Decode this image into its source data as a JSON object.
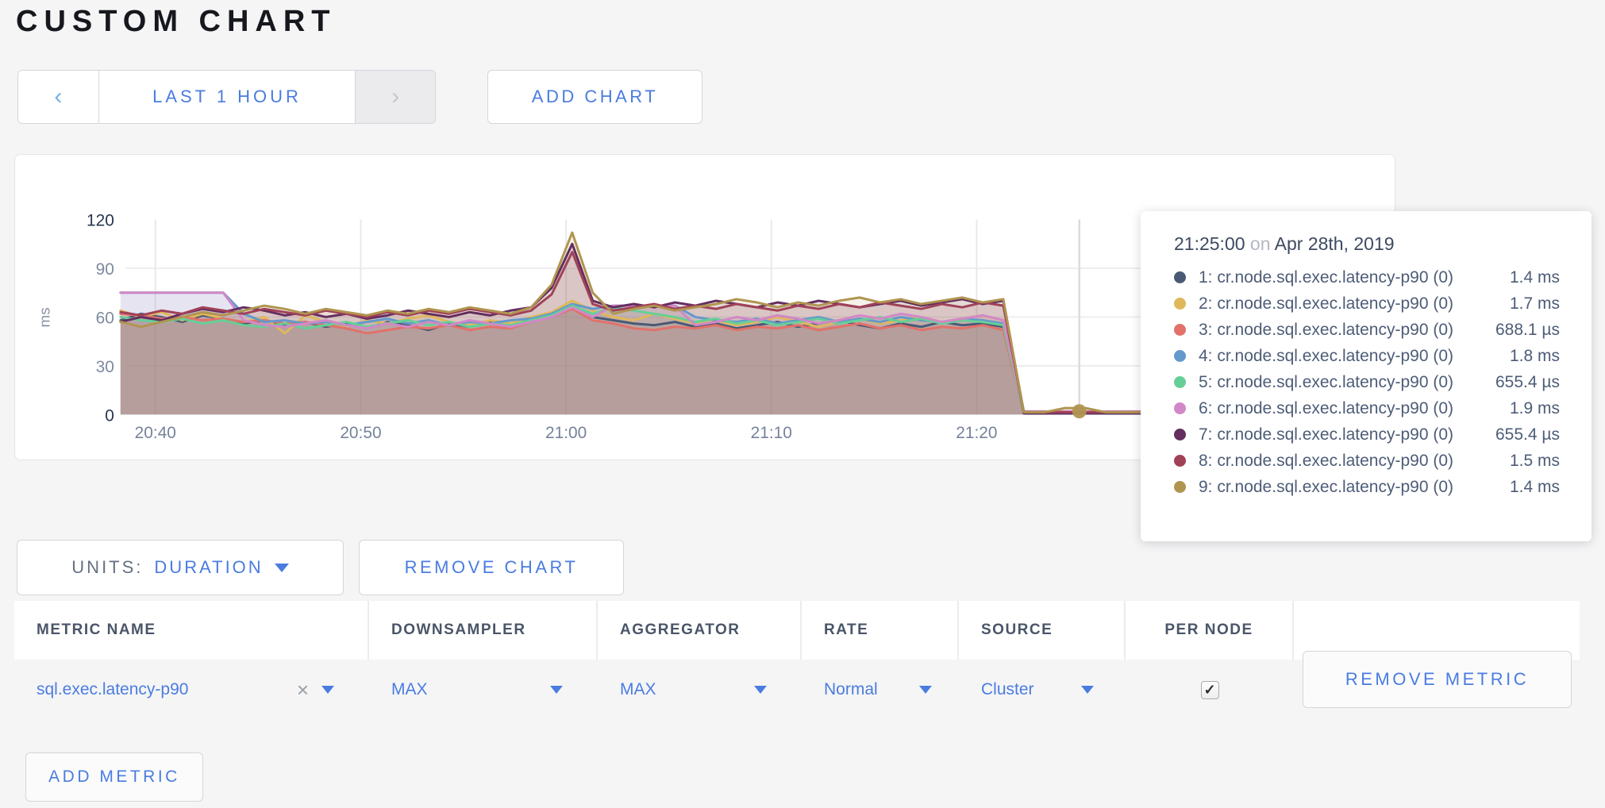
{
  "page": {
    "title": "CUSTOM CHART",
    "background": "#f5f5f6",
    "accent_blue": "#4a7ce0"
  },
  "time_nav": {
    "prev_icon": "‹",
    "range_label": "LAST 1 HOUR",
    "next_icon": "›"
  },
  "add_chart_label": "ADD CHART",
  "chart_data": {
    "type": "area",
    "title": "",
    "ylabel": "ms",
    "ylim": [
      0,
      120
    ],
    "yticks": [
      0,
      30,
      60,
      90,
      120
    ],
    "grid": true,
    "x_start": "20:38",
    "x_step_min": 1,
    "xticks": [
      {
        "label": "20:40",
        "t": 1.7
      },
      {
        "label": "20:50",
        "t": 11.7
      },
      {
        "label": "21:00",
        "t": 21.7
      },
      {
        "label": "21:10",
        "t": 31.7
      },
      {
        "label": "21:20",
        "t": 41.7
      }
    ],
    "hover": {
      "t": 46.7,
      "time_label": "21:25:00",
      "marker_value": 2
    },
    "series": [
      {
        "name": "1: cr.node.sql.exec.latency-p90 (0)",
        "color": "#4a5a75",
        "values": [
          58,
          62,
          60,
          57,
          61,
          59,
          56,
          58,
          55,
          57,
          54,
          56,
          53,
          57,
          55,
          52,
          56,
          54,
          57,
          55,
          58,
          60,
          66,
          60,
          58,
          56,
          55,
          57,
          54,
          56,
          53,
          55,
          57,
          54,
          56,
          58,
          55,
          53,
          56,
          54,
          57,
          55,
          56,
          54,
          1.4,
          1.4,
          1.4,
          1.4,
          1.4,
          1.4,
          1.4
        ]
      },
      {
        "name": "2: cr.node.sql.exec.latency-p90 (0)",
        "color": "#dfb85c",
        "values": [
          64,
          60,
          63,
          58,
          62,
          59,
          57,
          60,
          50,
          61,
          57,
          54,
          58,
          56,
          59,
          61,
          57,
          55,
          58,
          56,
          60,
          63,
          70,
          64,
          60,
          58,
          62,
          59,
          56,
          58,
          55,
          57,
          60,
          57,
          54,
          57,
          59,
          56,
          58,
          60,
          57,
          59,
          61,
          58,
          1.7,
          1.7,
          1.7,
          1.7,
          1.7,
          1.7,
          1.7
        ]
      },
      {
        "name": "3: cr.node.sql.exec.latency-p90 (0)",
        "color": "#e2716a",
        "values": [
          62,
          61,
          59,
          60,
          58,
          59,
          57,
          58,
          56,
          57,
          55,
          53,
          50,
          52,
          54,
          53,
          55,
          52,
          54,
          53,
          57,
          60,
          65,
          58,
          56,
          53,
          52,
          54,
          53,
          55,
          52,
          54,
          53,
          55,
          52,
          54,
          56,
          53,
          55,
          52,
          54,
          53,
          55,
          52,
          0.7,
          0.7,
          0.7,
          0.7,
          0.7,
          0.7,
          0.7
        ]
      },
      {
        "name": "4: cr.node.sql.exec.latency-p90 (0)",
        "color": "#6499cc",
        "values": [
          75,
          75,
          75,
          75,
          75,
          75,
          62,
          57,
          58,
          56,
          57,
          55,
          57,
          59,
          56,
          58,
          55,
          57,
          56,
          58,
          59,
          62,
          68,
          65,
          67,
          67,
          67,
          67,
          60,
          58,
          57,
          59,
          56,
          58,
          60,
          57,
          59,
          57,
          60,
          58,
          57,
          59,
          58,
          56,
          1.8,
          1.8,
          1.8,
          1.8,
          1.8,
          1.8,
          1.8
        ]
      },
      {
        "name": "5: cr.node.sql.exec.latency-p90 (0)",
        "color": "#66cf97",
        "values": [
          60,
          58,
          57,
          59,
          56,
          58,
          55,
          54,
          56,
          53,
          55,
          57,
          54,
          56,
          58,
          55,
          57,
          54,
          56,
          55,
          58,
          61,
          67,
          62,
          66,
          64,
          62,
          60,
          57,
          59,
          56,
          58,
          55,
          57,
          59,
          56,
          58,
          60,
          57,
          59,
          56,
          58,
          57,
          55,
          0.7,
          0.7,
          0.7,
          0.7,
          0.7,
          0.7,
          0.7
        ]
      },
      {
        "name": "6: cr.node.sql.exec.latency-p90 (0)",
        "color": "#d288c6",
        "values": [
          75,
          75,
          75,
          75,
          75,
          75,
          58,
          55,
          54,
          56,
          58,
          55,
          53,
          56,
          54,
          57,
          55,
          58,
          56,
          54,
          57,
          60,
          66,
          60,
          67,
          67,
          67,
          67,
          55,
          57,
          60,
          58,
          61,
          59,
          56,
          58,
          61,
          59,
          62,
          60,
          57,
          59,
          61,
          58,
          1.9,
          1.9,
          1.9,
          1.9,
          1.9,
          1.9,
          1.9
        ]
      },
      {
        "name": "7: cr.node.sql.exec.latency-p90 (0)",
        "color": "#642e5e",
        "values": [
          57,
          60,
          58,
          62,
          65,
          63,
          66,
          64,
          61,
          63,
          60,
          62,
          59,
          61,
          64,
          62,
          60,
          63,
          61,
          64,
          66,
          78,
          105,
          70,
          66,
          68,
          66,
          69,
          67,
          70,
          68,
          66,
          69,
          67,
          70,
          68,
          66,
          68,
          70,
          67,
          69,
          71,
          68,
          70,
          0.7,
          0.7,
          0.7,
          0.7,
          0.7,
          0.7,
          0.7
        ]
      },
      {
        "name": "8: cr.node.sql.exec.latency-p90 (0)",
        "color": "#a04158",
        "values": [
          63,
          61,
          64,
          62,
          66,
          64,
          62,
          65,
          63,
          61,
          64,
          62,
          60,
          63,
          61,
          64,
          62,
          65,
          63,
          61,
          64,
          74,
          100,
          68,
          64,
          66,
          68,
          65,
          67,
          65,
          68,
          66,
          64,
          67,
          65,
          68,
          66,
          69,
          67,
          65,
          68,
          66,
          69,
          67,
          1.5,
          1.5,
          1.5,
          1.5,
          1.5,
          1.5,
          1.5
        ]
      },
      {
        "name": "9: cr.node.sql.exec.latency-p90 (0)",
        "color": "#b09550",
        "values": [
          57,
          54,
          57,
          60,
          63,
          61,
          64,
          67,
          65,
          62,
          65,
          63,
          61,
          64,
          62,
          65,
          63,
          66,
          64,
          62,
          66,
          80,
          112,
          75,
          62,
          65,
          67,
          64,
          66,
          68,
          71,
          69,
          66,
          69,
          67,
          70,
          72,
          69,
          71,
          68,
          70,
          72,
          69,
          71,
          1.4,
          1.4,
          4,
          4,
          1.4,
          1.4,
          1.4
        ]
      }
    ]
  },
  "tooltip": {
    "time": "21:25:00",
    "connector": "on",
    "date": "Apr 28th, 2019",
    "rows": [
      {
        "label": "1: cr.node.sql.exec.latency-p90 (0)",
        "value": "1.4 ms",
        "color": "#4a5a75"
      },
      {
        "label": "2: cr.node.sql.exec.latency-p90 (0)",
        "value": "1.7 ms",
        "color": "#dfb85c"
      },
      {
        "label": "3: cr.node.sql.exec.latency-p90 (0)",
        "value": "688.1 µs",
        "color": "#e2716a"
      },
      {
        "label": "4: cr.node.sql.exec.latency-p90 (0)",
        "value": "1.8 ms",
        "color": "#6499cc"
      },
      {
        "label": "5: cr.node.sql.exec.latency-p90 (0)",
        "value": "655.4 µs",
        "color": "#66cf97"
      },
      {
        "label": "6: cr.node.sql.exec.latency-p90 (0)",
        "value": "1.9 ms",
        "color": "#d288c6"
      },
      {
        "label": "7: cr.node.sql.exec.latency-p90 (0)",
        "value": "655.4 µs",
        "color": "#642e5e"
      },
      {
        "label": "8: cr.node.sql.exec.latency-p90 (0)",
        "value": "1.5 ms",
        "color": "#a04158"
      },
      {
        "label": "9: cr.node.sql.exec.latency-p90 (0)",
        "value": "1.4 ms",
        "color": "#b09550"
      }
    ]
  },
  "chart_controls": {
    "units_label": "UNITS:",
    "units_value": "DURATION",
    "remove_chart": "REMOVE CHART"
  },
  "metrics_table": {
    "headers": [
      "METRIC NAME",
      "DOWNSAMPLER",
      "AGGREGATOR",
      "RATE",
      "SOURCE",
      "PER NODE"
    ],
    "row": {
      "metric_name": "sql.exec.latency-p90",
      "remove_icon": "×",
      "downsampler": "MAX",
      "aggregator": "MAX",
      "rate": "Normal",
      "source": "Cluster",
      "per_node_checked": true,
      "check_glyph": "✓",
      "remove_metric_label": "REMOVE METRIC"
    }
  },
  "add_metric_label": "ADD METRIC"
}
